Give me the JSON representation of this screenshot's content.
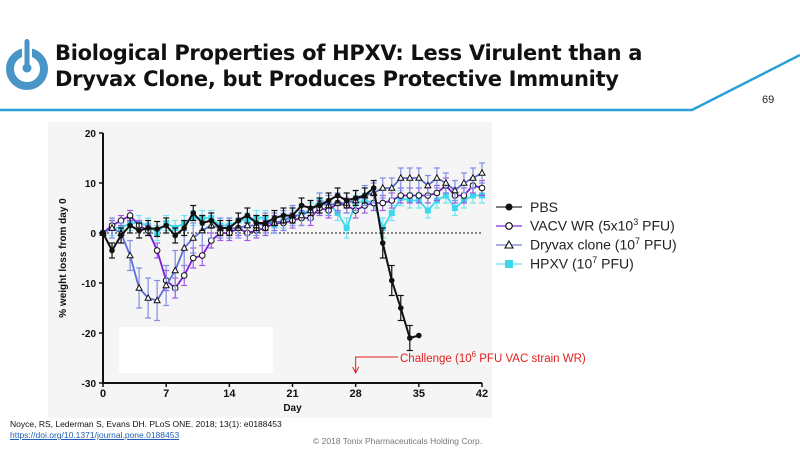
{
  "slide": {
    "title_line1": "Biological Properties of HPXV: Less Virulent than a",
    "title_line2": "Dryvax Clone, but Produces Protective Immunity",
    "page_number": "69",
    "logo_icon": "power-button-icon",
    "accent_color": "#2a9fd6",
    "citation_text": "Noyce, RS, Lederman S, Evans DH. PLoS ONE. 2018; 13(1): e0188453",
    "citation_link": "https://doi.org/10.1371/journal.pone.0188453",
    "copyright": "© 2018 Tonix Pharmaceuticals Holding Corp."
  },
  "annotation": {
    "challenge_prefix": "Challenge (10",
    "challenge_exp": "6",
    "challenge_suffix": " PFU VAC strain WR)",
    "challenge_day": 28,
    "color": "#e02020"
  },
  "legend": [
    {
      "base": "PBS",
      "exp": "",
      "suffix": ""
    },
    {
      "base": "VACV WR (5x10",
      "exp": "3",
      "suffix": " PFU)"
    },
    {
      "base": "Dryvax clone (10",
      "exp": "7",
      "suffix": " PFU)"
    },
    {
      "base": "HPXV (10",
      "exp": "7",
      "suffix": " PFU)"
    }
  ],
  "chart_data": {
    "type": "line",
    "title": "",
    "xlabel": "Day",
    "ylabel": "% weight loss from day 0",
    "xlim": [
      0,
      42
    ],
    "ylim": [
      -30,
      20
    ],
    "xticks": [
      0,
      7,
      14,
      21,
      28,
      35,
      42
    ],
    "yticks": [
      20,
      10,
      0,
      -10,
      -20,
      -30
    ],
    "reference_line_y": 0,
    "grid": false,
    "legend_position": "right",
    "series": [
      {
        "name": "PBS",
        "color": "#111111",
        "marker": "filled-circle",
        "x": [
          0,
          1,
          2,
          3,
          4,
          5,
          6,
          7,
          8,
          9,
          10,
          11,
          12,
          13,
          14,
          15,
          16,
          17,
          18,
          19,
          20,
          21,
          22,
          23,
          24,
          25,
          26,
          27,
          28,
          29,
          30,
          31,
          32,
          33,
          34,
          35
        ],
        "y": [
          0,
          -3.5,
          -0.5,
          1.5,
          0.5,
          1,
          0.8,
          1.5,
          -0.5,
          1,
          4,
          2,
          2.5,
          1,
          1,
          2.5,
          3.5,
          2,
          2,
          3,
          3.5,
          3.5,
          5.5,
          5,
          5.5,
          6.5,
          7.5,
          6.5,
          7,
          7.5,
          9,
          -2,
          -9.5,
          -15,
          -21,
          -20.5
        ],
        "err": [
          0,
          1.5,
          1.5,
          1.5,
          1.5,
          1.5,
          1.5,
          1.5,
          1.5,
          1.5,
          1.5,
          1.5,
          1.5,
          1.5,
          1.5,
          1.5,
          1.5,
          1.5,
          1.5,
          1.5,
          1.5,
          1.5,
          1.5,
          1.5,
          1.5,
          1.5,
          1.5,
          1.5,
          1.5,
          1.5,
          1.5,
          3,
          3,
          2.5,
          2.5,
          0
        ]
      },
      {
        "name": "VACV WR (5x10^3 PFU)",
        "color": "#7a1fd6",
        "marker": "open-circle",
        "x": [
          0,
          1,
          2,
          3,
          4,
          5,
          6,
          7,
          8,
          9,
          10,
          11,
          12,
          13,
          14,
          15,
          16,
          17,
          18,
          19,
          20,
          21,
          22,
          23,
          24,
          25,
          26,
          27,
          28,
          29,
          30,
          31,
          32,
          33,
          34,
          35,
          36,
          37,
          38,
          39,
          40,
          41,
          42
        ],
        "y": [
          0,
          1.5,
          2.5,
          3.5,
          1.5,
          0.5,
          -3.5,
          -9.5,
          -11,
          -8.5,
          -5,
          -4.5,
          -1.5,
          0,
          0,
          1,
          0,
          0.5,
          1,
          2,
          2,
          2.5,
          3,
          3,
          5,
          4.5,
          6,
          5.5,
          4.5,
          5.5,
          6,
          6,
          6.5,
          7.5,
          7.5,
          7.5,
          7.5,
          8,
          9.5,
          7.5,
          7.5,
          9.5,
          9
        ],
        "err": [
          0,
          1,
          1,
          1,
          1,
          1,
          1.5,
          2,
          2,
          2,
          2,
          2,
          1.5,
          1.5,
          1.5,
          1.5,
          1.5,
          1.5,
          1.5,
          1.5,
          1.5,
          1.5,
          1.5,
          1.5,
          1.5,
          1.5,
          1.5,
          1.5,
          1.5,
          1.5,
          1.5,
          1.5,
          1.5,
          1.5,
          1.5,
          1.5,
          1.5,
          1.5,
          1.5,
          1.5,
          1.5,
          1.5,
          1.5
        ]
      },
      {
        "name": "Dryvax clone (10^7 PFU)",
        "color": "#5b6fd6",
        "marker": "open-triangle",
        "x": [
          0,
          1,
          2,
          3,
          4,
          5,
          6,
          7,
          8,
          9,
          10,
          11,
          12,
          13,
          14,
          15,
          16,
          17,
          18,
          19,
          20,
          21,
          22,
          23,
          24,
          25,
          26,
          27,
          28,
          29,
          30,
          31,
          32,
          33,
          34,
          35,
          36,
          37,
          38,
          39,
          40,
          41,
          42
        ],
        "y": [
          0,
          1,
          0,
          -4.5,
          -11,
          -13,
          -13.5,
          -10.5,
          -7.5,
          -3,
          -1,
          0.5,
          1.5,
          1,
          1,
          1,
          1.5,
          1.5,
          2,
          2,
          2.5,
          3.5,
          3.5,
          4.5,
          6,
          5.5,
          6,
          6,
          6.5,
          7.5,
          8,
          9,
          9,
          11,
          11,
          11,
          9.5,
          11,
          10,
          8.5,
          10,
          11,
          12
        ],
        "err": [
          0,
          2,
          2,
          3,
          4,
          4,
          4,
          4,
          4,
          3.5,
          3,
          3,
          2.5,
          2,
          2,
          2,
          2,
          2,
          2,
          2,
          2,
          2,
          2,
          2,
          2,
          2,
          2,
          2,
          2,
          2,
          2,
          2,
          2,
          2,
          2,
          2,
          2,
          2,
          2,
          2,
          2,
          2,
          2
        ]
      },
      {
        "name": "HPXV (10^7 PFU)",
        "color": "#3ed8ee",
        "marker": "filled-square",
        "x": [
          0,
          1,
          2,
          3,
          4,
          5,
          6,
          7,
          8,
          9,
          10,
          11,
          12,
          13,
          14,
          15,
          16,
          17,
          18,
          19,
          20,
          21,
          22,
          23,
          24,
          25,
          26,
          27,
          28,
          29,
          30,
          31,
          32,
          33,
          34,
          35,
          36,
          37,
          38,
          39,
          40,
          41,
          42
        ],
        "y": [
          0,
          1,
          1,
          2,
          2,
          1.5,
          0,
          2,
          1,
          2,
          3,
          3,
          3,
          1.5,
          1.5,
          2.5,
          2.5,
          3,
          3,
          1.5,
          2.5,
          3,
          4,
          4.5,
          6.5,
          6,
          4,
          1,
          6,
          6.5,
          6,
          1,
          4,
          7,
          6.5,
          6.5,
          4.5,
          6.5,
          7.5,
          5,
          6.5,
          7.5,
          7.5
        ],
        "err": [
          0,
          1.5,
          1.5,
          1.5,
          1.5,
          1.5,
          1.5,
          1.5,
          1.5,
          1.5,
          1.5,
          1.5,
          1.5,
          1.5,
          1.5,
          1.5,
          1.5,
          1.5,
          1.5,
          1.5,
          1.5,
          1.5,
          1.5,
          1.5,
          1.5,
          1.5,
          1.5,
          2,
          1.5,
          1.5,
          1.5,
          2,
          1.5,
          1.5,
          1.5,
          1.5,
          1.5,
          1.5,
          1.5,
          1.5,
          1.5,
          1.5,
          1.5
        ]
      }
    ]
  }
}
